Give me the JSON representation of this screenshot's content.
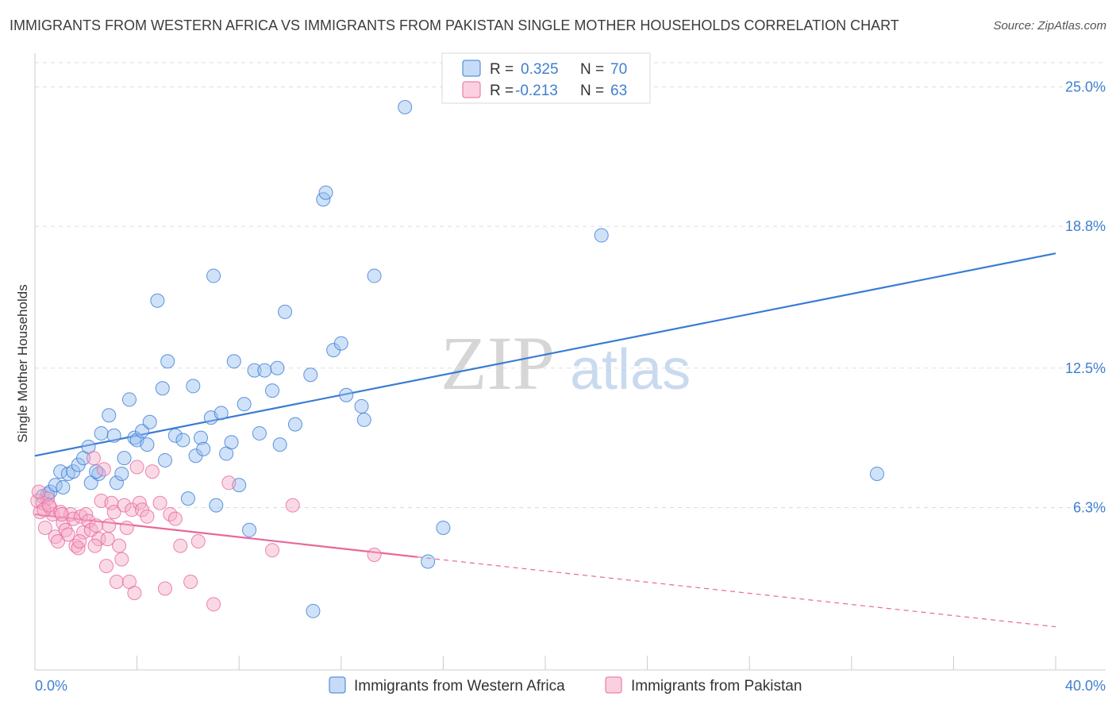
{
  "title": "IMMIGRANTS FROM WESTERN AFRICA VS IMMIGRANTS FROM PAKISTAN SINGLE MOTHER HOUSEHOLDS CORRELATION CHART",
  "source": "Source: ZipAtlas.com",
  "watermark": {
    "zip": "ZIP",
    "atlas": "atlas"
  },
  "legend_top": {
    "rows": [
      {
        "r_label": "R =",
        "r_value": "0.325",
        "n_label": "N =",
        "n_value": "70"
      },
      {
        "r_label": "R =",
        "r_value": "-0.213",
        "n_label": "N =",
        "n_value": "63"
      }
    ]
  },
  "chart_data": {
    "type": "scatter",
    "xlabel": "",
    "ylabel": "Single Mother Households",
    "xlim": [
      0,
      40
    ],
    "ylim": [
      0,
      26.5
    ],
    "x_tick_labels": {
      "left": "0.0%",
      "right": "40.0%"
    },
    "y_ticks": [
      {
        "value": 25.0,
        "label": "25.0%"
      },
      {
        "value": 18.8,
        "label": "18.8%"
      },
      {
        "value": 12.5,
        "label": "12.5%"
      },
      {
        "value": 6.3,
        "label": "6.3%"
      }
    ],
    "grid": true,
    "legend_position": "top-center",
    "colors": {
      "blue": "#3a7bd5",
      "blue_fill": "rgba(150,190,240,0.45)",
      "pink": "#e8679a",
      "pink_fill": "rgba(245,170,200,0.45)",
      "tick_text": "#3f7fd0"
    },
    "series": [
      {
        "name": "Immigrants from Western Africa",
        "color": "#3a7bd5",
        "trend": {
          "x1": 0,
          "y1": 8.6,
          "x2": 40,
          "y2": 17.6,
          "dashed_from": null
        },
        "points": [
          [
            0.3,
            6.8
          ],
          [
            0.5,
            6.9
          ],
          [
            0.6,
            7.0
          ],
          [
            0.8,
            7.3
          ],
          [
            1.0,
            7.9
          ],
          [
            1.1,
            7.2
          ],
          [
            1.3,
            7.8
          ],
          [
            1.5,
            7.9
          ],
          [
            1.7,
            8.2
          ],
          [
            1.9,
            8.5
          ],
          [
            2.1,
            9.0
          ],
          [
            2.2,
            7.4
          ],
          [
            2.5,
            7.8
          ],
          [
            2.6,
            9.6
          ],
          [
            2.9,
            10.4
          ],
          [
            3.1,
            9.5
          ],
          [
            3.2,
            7.4
          ],
          [
            3.4,
            7.8
          ],
          [
            3.5,
            8.5
          ],
          [
            3.7,
            11.1
          ],
          [
            3.9,
            9.4
          ],
          [
            4.0,
            9.3
          ],
          [
            4.2,
            9.7
          ],
          [
            4.4,
            9.1
          ],
          [
            4.5,
            10.1
          ],
          [
            4.8,
            15.5
          ],
          [
            5.0,
            11.6
          ],
          [
            5.1,
            8.4
          ],
          [
            5.2,
            12.8
          ],
          [
            5.5,
            9.5
          ],
          [
            5.8,
            9.3
          ],
          [
            6.0,
            6.7
          ],
          [
            6.2,
            11.7
          ],
          [
            6.3,
            8.6
          ],
          [
            6.5,
            9.4
          ],
          [
            6.6,
            8.9
          ],
          [
            6.9,
            10.3
          ],
          [
            7.0,
            16.6
          ],
          [
            7.1,
            6.4
          ],
          [
            7.3,
            10.5
          ],
          [
            7.5,
            8.7
          ],
          [
            7.7,
            9.2
          ],
          [
            7.8,
            12.8
          ],
          [
            8.0,
            7.3
          ],
          [
            8.2,
            10.9
          ],
          [
            8.4,
            5.3
          ],
          [
            8.6,
            12.4
          ],
          [
            8.8,
            9.6
          ],
          [
            9.0,
            12.4
          ],
          [
            9.3,
            11.5
          ],
          [
            9.5,
            12.5
          ],
          [
            9.6,
            9.1
          ],
          [
            9.8,
            15.0
          ],
          [
            10.2,
            10.0
          ],
          [
            10.8,
            12.2
          ],
          [
            11.3,
            20.0
          ],
          [
            11.4,
            20.3
          ],
          [
            11.7,
            13.3
          ],
          [
            12.0,
            13.6
          ],
          [
            12.2,
            11.3
          ],
          [
            12.8,
            10.8
          ],
          [
            12.9,
            10.2
          ],
          [
            13.3,
            16.6
          ],
          [
            14.5,
            24.1
          ],
          [
            15.4,
            3.9
          ],
          [
            16.0,
            5.4
          ],
          [
            22.2,
            18.4
          ],
          [
            33.0,
            7.8
          ],
          [
            10.9,
            1.7
          ],
          [
            2.4,
            7.9
          ]
        ]
      },
      {
        "name": "Immigrants from Pakistan",
        "color": "#e8679a",
        "trend": {
          "x1": 0,
          "y1": 6.0,
          "x2": 15.0,
          "y2": 4.1,
          "dash_x2": 40,
          "dash_y2": 1.0
        },
        "points": [
          [
            0.2,
            6.1
          ],
          [
            0.3,
            6.5
          ],
          [
            0.4,
            5.4
          ],
          [
            0.5,
            6.7
          ],
          [
            0.6,
            6.3
          ],
          [
            0.7,
            6.0
          ],
          [
            0.8,
            5.0
          ],
          [
            0.9,
            4.8
          ],
          [
            1.0,
            6.1
          ],
          [
            1.1,
            5.6
          ],
          [
            1.2,
            5.3
          ],
          [
            1.3,
            5.1
          ],
          [
            1.4,
            6.0
          ],
          [
            1.5,
            5.8
          ],
          [
            1.6,
            4.6
          ],
          [
            1.7,
            4.5
          ],
          [
            1.8,
            5.9
          ],
          [
            1.9,
            5.2
          ],
          [
            2.0,
            6.0
          ],
          [
            2.1,
            5.7
          ],
          [
            2.2,
            5.3
          ],
          [
            2.3,
            8.5
          ],
          [
            2.4,
            5.5
          ],
          [
            2.5,
            4.9
          ],
          [
            2.6,
            6.6
          ],
          [
            2.7,
            8.0
          ],
          [
            2.8,
            3.7
          ],
          [
            2.9,
            5.5
          ],
          [
            3.0,
            6.5
          ],
          [
            3.1,
            6.1
          ],
          [
            3.2,
            3.0
          ],
          [
            3.3,
            4.6
          ],
          [
            3.4,
            4.0
          ],
          [
            3.5,
            6.4
          ],
          [
            3.6,
            5.4
          ],
          [
            3.7,
            3.0
          ],
          [
            3.8,
            6.2
          ],
          [
            3.9,
            2.5
          ],
          [
            4.0,
            8.1
          ],
          [
            4.1,
            6.5
          ],
          [
            4.2,
            6.2
          ],
          [
            4.4,
            5.9
          ],
          [
            4.6,
            7.9
          ],
          [
            4.9,
            6.5
          ],
          [
            5.1,
            2.7
          ],
          [
            5.3,
            6.0
          ],
          [
            5.5,
            5.8
          ],
          [
            5.7,
            4.6
          ],
          [
            6.1,
            3.0
          ],
          [
            6.4,
            4.8
          ],
          [
            7.0,
            2.0
          ],
          [
            7.6,
            7.4
          ],
          [
            9.3,
            4.4
          ],
          [
            10.1,
            6.4
          ],
          [
            13.3,
            4.2
          ],
          [
            0.1,
            6.6
          ],
          [
            0.15,
            7.0
          ],
          [
            0.35,
            6.2
          ],
          [
            1.05,
            6.0
          ],
          [
            2.85,
            4.9
          ],
          [
            0.55,
            6.4
          ],
          [
            1.75,
            4.8
          ],
          [
            2.35,
            4.6
          ]
        ]
      }
    ]
  }
}
